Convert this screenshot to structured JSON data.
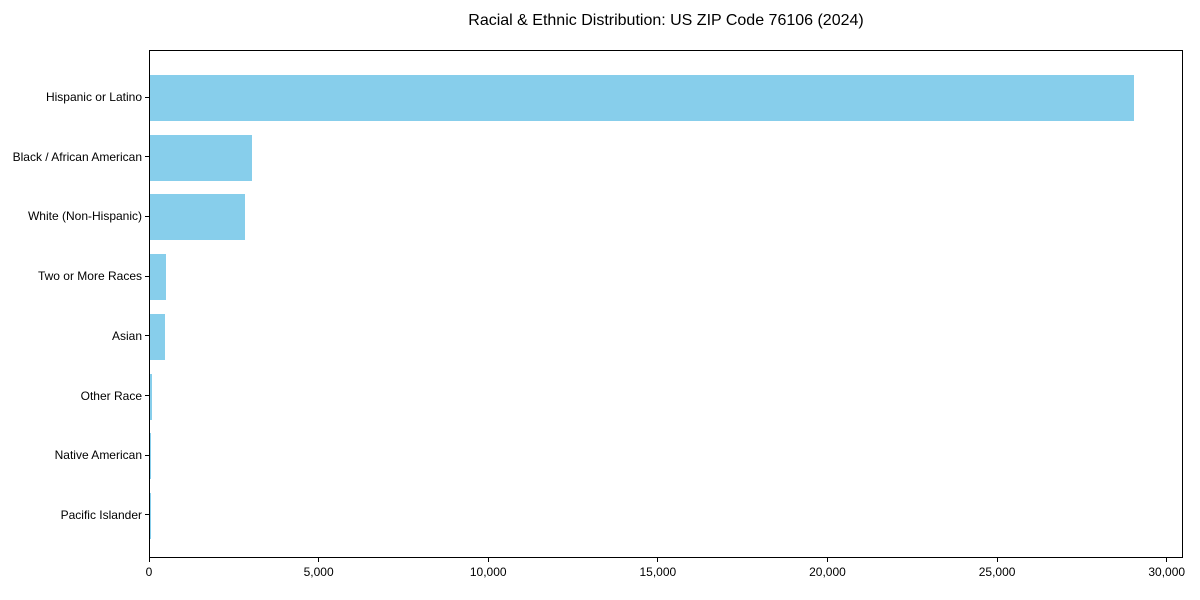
{
  "title": "Racial & Ethnic Distribution: US ZIP Code 76106 (2024)",
  "colors": {
    "bar": "#87CEEB",
    "axis": "#000000",
    "text": "#000000",
    "background": "#FFFFFF"
  },
  "chart_data": {
    "type": "bar",
    "orientation": "horizontal",
    "title": "Racial & Ethnic Distribution: US ZIP Code 76106 (2024)",
    "categories": [
      "Hispanic or Latino",
      "Black / African American",
      "White (Non-Hispanic)",
      "Two or More Races",
      "Asian",
      "Other Race",
      "Native American",
      "Pacific Islander"
    ],
    "values": [
      29000,
      3000,
      2800,
      480,
      450,
      70,
      20,
      10
    ],
    "series_name": "Population",
    "xlabel": "",
    "ylabel": "",
    "xlim": [
      0,
      30480
    ],
    "x_ticks": [
      0,
      5000,
      10000,
      15000,
      20000,
      25000,
      30000
    ],
    "x_tick_labels": [
      "0",
      "5,000",
      "10,000",
      "15,000",
      "20,000",
      "25,000",
      "30,000"
    ],
    "grid": false,
    "legend": null,
    "bar_color": "#87CEEB"
  }
}
